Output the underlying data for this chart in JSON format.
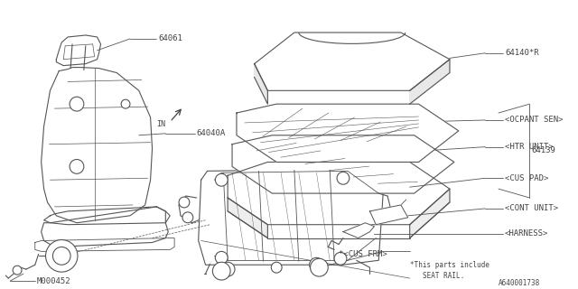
{
  "bg_color": "#ffffff",
  "line_color": "#555555",
  "diagram_id": "A640001738",
  "note_line1": "*This parts include",
  "note_line2": "SEAT RAIL.",
  "label_64061": "64061",
  "label_64040A": "64040A",
  "label_M000452": "M000452",
  "label_64140R": "64140*R",
  "label_64139": "64139",
  "label_ocpant": "<OCPANT SEN>",
  "label_htr": "<HTR UNIT>",
  "label_cuspad": "<CUS PAD>",
  "label_cont": "<CONT UNIT>",
  "label_harness": "<HARNESS>",
  "label_cusfm": "*<CUS FRM>",
  "label_in": "IN"
}
